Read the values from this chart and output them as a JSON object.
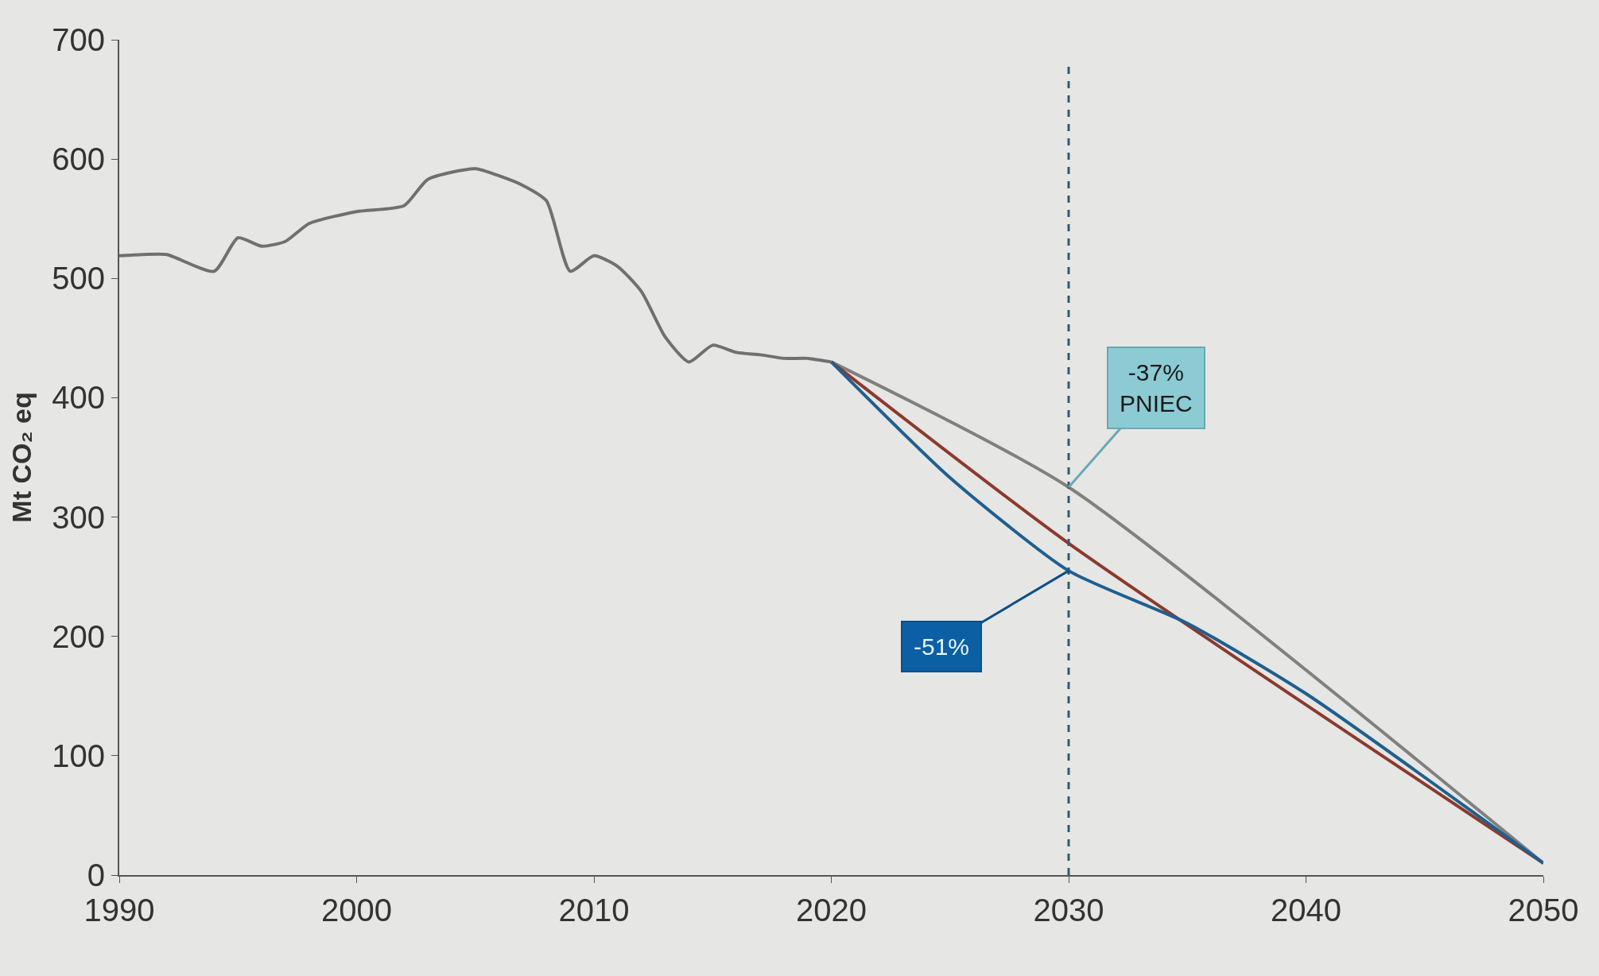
{
  "chart_data": {
    "type": "line",
    "ylabel": "Mt CO₂ eq",
    "xlim": [
      1990,
      2050
    ],
    "xticks": [
      1990,
      2000,
      2010,
      2020,
      2030,
      2040,
      2050
    ],
    "ylim": [
      0,
      700
    ],
    "yticks": [
      0,
      100,
      200,
      300,
      400,
      500,
      600,
      700
    ],
    "grid": false,
    "marker": "none",
    "line_style": "solid",
    "series": [
      {
        "color": "#707070",
        "x": [
          1990,
          1991,
          1992,
          1994,
          1995,
          1996,
          1997,
          1998,
          2000,
          2002,
          2003,
          2005,
          2006,
          2007,
          2008,
          2009,
          2010,
          2011,
          2012,
          2013,
          2014,
          2015,
          2016,
          2017,
          2018,
          2019,
          2020
        ],
        "values": [
          519,
          520,
          520,
          506,
          534,
          527,
          531,
          546,
          556,
          561,
          583,
          592,
          586,
          578,
          565,
          506,
          519,
          510,
          489,
          451,
          430,
          444,
          438,
          436,
          433,
          433,
          430
        ]
      },
      {
        "color": "#808080",
        "x": [
          2020,
          2030,
          2050
        ],
        "values": [
          430,
          325,
          10
        ]
      },
      {
        "color": "#8b3a2e",
        "x": [
          2020,
          2030,
          2050
        ],
        "values": [
          430,
          278,
          10
        ]
      },
      {
        "color": "#1f5f8f",
        "x": [
          2020,
          2025,
          2030,
          2035,
          2040,
          2050
        ],
        "values": [
          430,
          333,
          255,
          211,
          152,
          10
        ]
      }
    ],
    "ref_lines": [
      {
        "axis": "x",
        "value": 2030,
        "color": "#2c5c78",
        "line_style": "dashed"
      }
    ],
    "annotations": [
      {
        "text": "-37%\nPNIEC",
        "x": 2030,
        "y": 325
      },
      {
        "text": "-51%",
        "x": 2030,
        "y": 255
      }
    ]
  }
}
